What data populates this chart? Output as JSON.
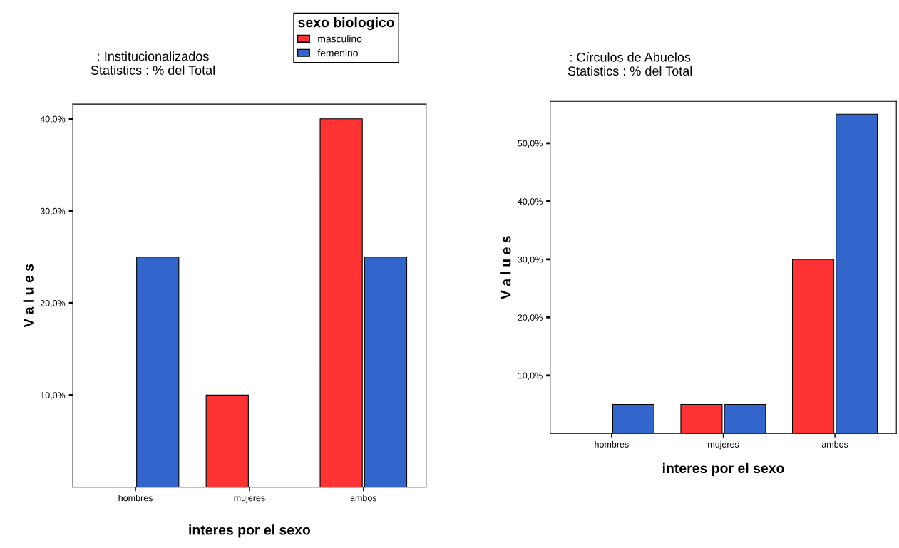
{
  "chart_data": [
    {
      "type": "bar",
      "title": ": Institucionalizados",
      "subtitle": "Statistics : % del Total",
      "xlabel": "interes por el sexo",
      "ylabel": "V a l u e s",
      "legend_title": "sexo biologico",
      "legend": "top right",
      "grid": false,
      "categories": [
        "hombres",
        "mujeres",
        "ambos"
      ],
      "series": [
        {
          "name": "masculino",
          "color": "#ff3333",
          "values": [
            null,
            10,
            40
          ]
        },
        {
          "name": "femenino",
          "color": "#3366cc",
          "values": [
            25,
            null,
            25
          ]
        }
      ],
      "ylim": [
        0,
        41.6
      ],
      "yticks": [
        {
          "value": 10,
          "label": "10,0%"
        },
        {
          "value": 20,
          "label": "20,0%"
        },
        {
          "value": 30,
          "label": "30,0%"
        },
        {
          "value": 40,
          "label": "40,0%"
        }
      ]
    },
    {
      "type": "bar",
      "title": ": Círculos de Abuelos",
      "subtitle": "Statistics : % del Total",
      "xlabel": "interes por el sexo",
      "ylabel": "V a l u e s",
      "grid": false,
      "categories": [
        "hombres",
        "mujeres",
        "ambos"
      ],
      "series": [
        {
          "color": "#ff3333",
          "values": [
            null,
            5,
            30
          ]
        },
        {
          "color": "#3366cc",
          "values": [
            5,
            5,
            55
          ]
        }
      ],
      "ylim": [
        0,
        57.2
      ],
      "yticks": [
        {
          "value": 10,
          "label": "10,0%"
        },
        {
          "value": 20,
          "label": "20,0%"
        },
        {
          "value": 30,
          "label": "30,0%"
        },
        {
          "value": 40,
          "label": "40,0%"
        },
        {
          "value": 50,
          "label": "50,0%"
        }
      ]
    }
  ]
}
